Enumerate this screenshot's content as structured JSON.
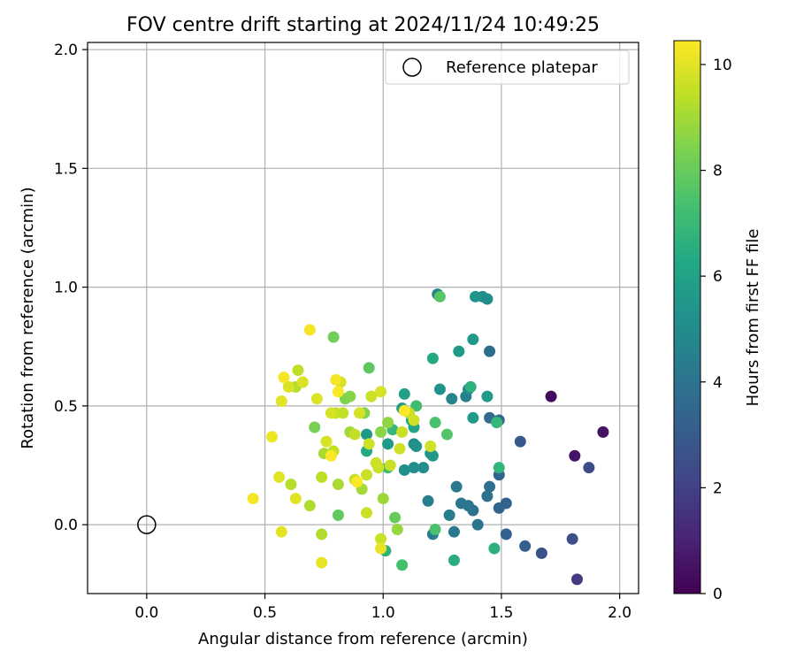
{
  "chart_data": {
    "type": "scatter",
    "title": "FOV centre drift starting at 2024/11/24 10:49:25",
    "xlabel": "Angular distance from reference (arcmin)",
    "ylabel": "Rotation from reference (arcmin)",
    "xlim": [
      -0.25,
      2.08
    ],
    "ylim": [
      -0.29,
      2.03
    ],
    "xticks": [
      "0.0",
      "0.5",
      "1.0",
      "1.5",
      "2.0"
    ],
    "yticks": [
      "0.0",
      "0.5",
      "1.0",
      "1.5",
      "2.0"
    ],
    "grid": true,
    "legend": {
      "position": "top-right",
      "entries": [
        "Reference platepar"
      ]
    },
    "reference_point": {
      "x": 0.0,
      "y": 0.0
    },
    "colorbar": {
      "label": "Hours from first FF file",
      "range": [
        0,
        10.45
      ],
      "ticks": [
        "0",
        "2",
        "4",
        "6",
        "8",
        "10"
      ],
      "colormap": "viridis"
    },
    "points": [
      {
        "x": 1.71,
        "y": 0.54,
        "c": 0.3
      },
      {
        "x": 1.93,
        "y": 0.39,
        "c": 0.5
      },
      {
        "x": 1.81,
        "y": 0.29,
        "c": 0.6
      },
      {
        "x": 1.82,
        "y": -0.23,
        "c": 1.8
      },
      {
        "x": 1.87,
        "y": 0.24,
        "c": 2.4
      },
      {
        "x": 1.8,
        "y": -0.06,
        "c": 2.5
      },
      {
        "x": 1.67,
        "y": -0.12,
        "c": 2.6
      },
      {
        "x": 1.58,
        "y": 0.35,
        "c": 2.9
      },
      {
        "x": 1.6,
        "y": -0.09,
        "c": 3.1
      },
      {
        "x": 1.52,
        "y": -0.04,
        "c": 3.2
      },
      {
        "x": 1.52,
        "y": 0.09,
        "c": 3.3
      },
      {
        "x": 1.49,
        "y": 0.07,
        "c": 3.4
      },
      {
        "x": 1.49,
        "y": 0.21,
        "c": 3.4
      },
      {
        "x": 1.49,
        "y": 0.44,
        "c": 3.5
      },
      {
        "x": 1.45,
        "y": 0.45,
        "c": 3.6
      },
      {
        "x": 1.45,
        "y": 0.73,
        "c": 3.7
      },
      {
        "x": 1.45,
        "y": 0.16,
        "c": 3.8
      },
      {
        "x": 1.44,
        "y": 0.12,
        "c": 3.9
      },
      {
        "x": 1.4,
        "y": 0.0,
        "c": 4.0
      },
      {
        "x": 1.38,
        "y": 0.06,
        "c": 4.0
      },
      {
        "x": 1.36,
        "y": 0.08,
        "c": 4.1
      },
      {
        "x": 1.33,
        "y": 0.09,
        "c": 4.1
      },
      {
        "x": 1.31,
        "y": 0.16,
        "c": 4.2
      },
      {
        "x": 1.3,
        "y": -0.03,
        "c": 4.2
      },
      {
        "x": 1.28,
        "y": 0.04,
        "c": 4.3
      },
      {
        "x": 1.21,
        "y": -0.04,
        "c": 4.3
      },
      {
        "x": 1.19,
        "y": 0.1,
        "c": 4.4
      },
      {
        "x": 1.23,
        "y": 0.97,
        "c": 4.6
      },
      {
        "x": 1.35,
        "y": 0.54,
        "c": 4.5
      },
      {
        "x": 1.29,
        "y": 0.53,
        "c": 4.7
      },
      {
        "x": 1.36,
        "y": 0.57,
        "c": 4.9
      },
      {
        "x": 1.42,
        "y": 0.96,
        "c": 5.0
      },
      {
        "x": 1.44,
        "y": 0.95,
        "c": 5.1
      },
      {
        "x": 1.24,
        "y": 0.57,
        "c": 5.3
      },
      {
        "x": 1.39,
        "y": 0.96,
        "c": 5.4
      },
      {
        "x": 1.38,
        "y": 0.78,
        "c": 5.6
      },
      {
        "x": 1.32,
        "y": 0.73,
        "c": 5.6
      },
      {
        "x": 1.38,
        "y": 0.45,
        "c": 5.7
      },
      {
        "x": 1.44,
        "y": 0.54,
        "c": 5.7
      },
      {
        "x": 1.17,
        "y": 0.24,
        "c": 5.0
      },
      {
        "x": 1.13,
        "y": 0.24,
        "c": 5.0
      },
      {
        "x": 1.09,
        "y": 0.23,
        "c": 5.2
      },
      {
        "x": 1.13,
        "y": 0.34,
        "c": 5.1
      },
      {
        "x": 1.14,
        "y": 0.33,
        "c": 5.3
      },
      {
        "x": 1.2,
        "y": 0.3,
        "c": 5.4
      },
      {
        "x": 1.21,
        "y": 0.29,
        "c": 5.5
      },
      {
        "x": 1.09,
        "y": 0.55,
        "c": 5.9
      },
      {
        "x": 1.08,
        "y": 0.49,
        "c": 5.8
      },
      {
        "x": 1.12,
        "y": 0.44,
        "c": 6.1
      },
      {
        "x": 1.13,
        "y": 0.41,
        "c": 6.2
      },
      {
        "x": 1.21,
        "y": 0.7,
        "c": 6.3
      },
      {
        "x": 1.3,
        "y": -0.15,
        "c": 6.5
      },
      {
        "x": 1.37,
        "y": 0.58,
        "c": 6.6
      },
      {
        "x": 1.47,
        "y": -0.1,
        "c": 6.6
      },
      {
        "x": 1.49,
        "y": 0.24,
        "c": 6.8
      },
      {
        "x": 1.48,
        "y": 0.43,
        "c": 6.9
      },
      {
        "x": 0.93,
        "y": 0.38,
        "c": 5.6
      },
      {
        "x": 1.02,
        "y": 0.34,
        "c": 5.7
      },
      {
        "x": 0.93,
        "y": 0.31,
        "c": 6.3
      },
      {
        "x": 1.04,
        "y": 0.4,
        "c": 6.9
      },
      {
        "x": 1.01,
        "y": -0.11,
        "c": 6.7
      },
      {
        "x": 1.02,
        "y": 0.24,
        "c": 7.1
      },
      {
        "x": 1.14,
        "y": 0.5,
        "c": 7.2
      },
      {
        "x": 1.08,
        "y": -0.17,
        "c": 7.3
      },
      {
        "x": 1.22,
        "y": -0.02,
        "c": 7.4
      },
      {
        "x": 1.22,
        "y": 0.43,
        "c": 7.4
      },
      {
        "x": 1.27,
        "y": 0.38,
        "c": 7.6
      },
      {
        "x": 1.24,
        "y": 0.96,
        "c": 7.7
      },
      {
        "x": 0.94,
        "y": 0.66,
        "c": 7.8
      },
      {
        "x": 0.81,
        "y": 0.04,
        "c": 7.9
      },
      {
        "x": 1.05,
        "y": 0.03,
        "c": 8.0
      },
      {
        "x": 0.79,
        "y": 0.79,
        "c": 8.2
      },
      {
        "x": 0.71,
        "y": 0.41,
        "c": 8.3
      },
      {
        "x": 0.84,
        "y": 0.53,
        "c": 8.4
      },
      {
        "x": 0.86,
        "y": 0.54,
        "c": 8.5
      },
      {
        "x": 0.92,
        "y": 0.47,
        "c": 8.5
      },
      {
        "x": 0.99,
        "y": 0.39,
        "c": 8.6
      },
      {
        "x": 1.02,
        "y": 0.43,
        "c": 8.7
      },
      {
        "x": 1.06,
        "y": -0.02,
        "c": 8.8
      },
      {
        "x": 1.0,
        "y": 0.11,
        "c": 8.9
      },
      {
        "x": 0.91,
        "y": 0.15,
        "c": 9.0
      },
      {
        "x": 0.86,
        "y": 0.39,
        "c": 9.0
      },
      {
        "x": 0.81,
        "y": 0.17,
        "c": 9.1
      },
      {
        "x": 0.75,
        "y": 0.3,
        "c": 9.1
      },
      {
        "x": 0.74,
        "y": -0.04,
        "c": 9.2
      },
      {
        "x": 0.69,
        "y": 0.08,
        "c": 9.2
      },
      {
        "x": 0.61,
        "y": 0.17,
        "c": 9.3
      },
      {
        "x": 0.63,
        "y": 0.58,
        "c": 9.3
      },
      {
        "x": 0.64,
        "y": 0.65,
        "c": 9.4
      },
      {
        "x": 0.74,
        "y": 0.2,
        "c": 9.4
      },
      {
        "x": 0.79,
        "y": 0.31,
        "c": 9.5
      },
      {
        "x": 0.8,
        "y": 0.47,
        "c": 9.5
      },
      {
        "x": 0.83,
        "y": 0.47,
        "c": 9.5
      },
      {
        "x": 0.88,
        "y": 0.38,
        "c": 9.5
      },
      {
        "x": 0.88,
        "y": 0.19,
        "c": 9.5
      },
      {
        "x": 0.93,
        "y": 0.05,
        "c": 9.6
      },
      {
        "x": 0.93,
        "y": 0.21,
        "c": 9.6
      },
      {
        "x": 0.98,
        "y": 0.24,
        "c": 9.6
      },
      {
        "x": 0.99,
        "y": -0.06,
        "c": 9.6
      },
      {
        "x": 1.03,
        "y": 0.25,
        "c": 9.6
      },
      {
        "x": 1.08,
        "y": 0.39,
        "c": 9.6
      },
      {
        "x": 1.11,
        "y": 0.47,
        "c": 9.6
      },
      {
        "x": 1.13,
        "y": 0.44,
        "c": 9.7
      },
      {
        "x": 1.2,
        "y": 0.33,
        "c": 9.7
      },
      {
        "x": 1.07,
        "y": 0.32,
        "c": 9.7
      },
      {
        "x": 0.97,
        "y": 0.26,
        "c": 9.7
      },
      {
        "x": 0.94,
        "y": 0.34,
        "c": 9.7
      },
      {
        "x": 0.95,
        "y": 0.54,
        "c": 9.7
      },
      {
        "x": 0.99,
        "y": 0.56,
        "c": 9.8
      },
      {
        "x": 0.9,
        "y": 0.47,
        "c": 9.8
      },
      {
        "x": 0.82,
        "y": 0.6,
        "c": 9.8
      },
      {
        "x": 0.78,
        "y": 0.47,
        "c": 9.8
      },
      {
        "x": 0.76,
        "y": 0.35,
        "c": 9.8
      },
      {
        "x": 0.72,
        "y": 0.53,
        "c": 9.9
      },
      {
        "x": 0.66,
        "y": 0.6,
        "c": 9.9
      },
      {
        "x": 0.6,
        "y": 0.58,
        "c": 9.9
      },
      {
        "x": 0.57,
        "y": 0.52,
        "c": 10.0
      },
      {
        "x": 0.56,
        "y": 0.2,
        "c": 10.0
      },
      {
        "x": 0.57,
        "y": -0.03,
        "c": 10.0
      },
      {
        "x": 0.63,
        "y": 0.11,
        "c": 10.0
      },
      {
        "x": 0.74,
        "y": -0.16,
        "c": 10.1
      },
      {
        "x": 0.99,
        "y": -0.1,
        "c": 10.1
      },
      {
        "x": 0.53,
        "y": 0.37,
        "c": 10.2
      },
      {
        "x": 0.45,
        "y": 0.11,
        "c": 10.3
      },
      {
        "x": 0.58,
        "y": 0.62,
        "c": 10.3
      },
      {
        "x": 0.69,
        "y": 0.82,
        "c": 10.3
      },
      {
        "x": 0.8,
        "y": 0.61,
        "c": 10.3
      },
      {
        "x": 0.81,
        "y": 0.56,
        "c": 10.4
      },
      {
        "x": 0.78,
        "y": 0.29,
        "c": 10.4
      },
      {
        "x": 0.89,
        "y": 0.18,
        "c": 10.4
      },
      {
        "x": 1.09,
        "y": 0.48,
        "c": 10.4
      }
    ]
  }
}
